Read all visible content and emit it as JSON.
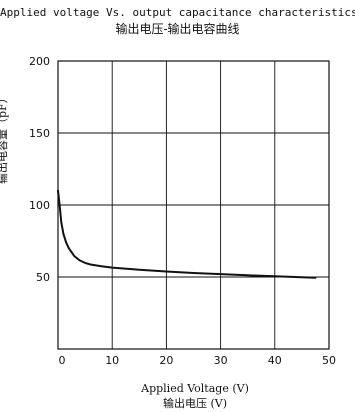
{
  "chart_data": {
    "type": "line",
    "title": "Applied voltage Vs. output capacitance characteristics",
    "subtitle": "输出电压-输出电容曲线",
    "xlabel": "Applied Voltage (V)",
    "xlabel_cn": "输出电压 (V)",
    "ylabel": "输出电容量（pF）",
    "xlim": [
      0,
      50
    ],
    "ylim": [
      0,
      200
    ],
    "x_ticks": [
      0,
      10,
      20,
      30,
      40,
      50
    ],
    "y_ticks": [
      50,
      100,
      150,
      200
    ],
    "grid": true,
    "series": [
      {
        "x": [
          0,
          0.3,
          0.6,
          1,
          1.5,
          2,
          3,
          4,
          5,
          6,
          8,
          10,
          15,
          20,
          25,
          30,
          35,
          40,
          45,
          47.5
        ],
        "y": [
          110,
          100,
          88,
          80,
          74,
          70,
          64.5,
          61.5,
          59.8,
          58.7,
          57.5,
          56.5,
          55,
          53.8,
          52.8,
          52,
          51.2,
          50.5,
          49.8,
          49.5
        ]
      }
    ]
  }
}
